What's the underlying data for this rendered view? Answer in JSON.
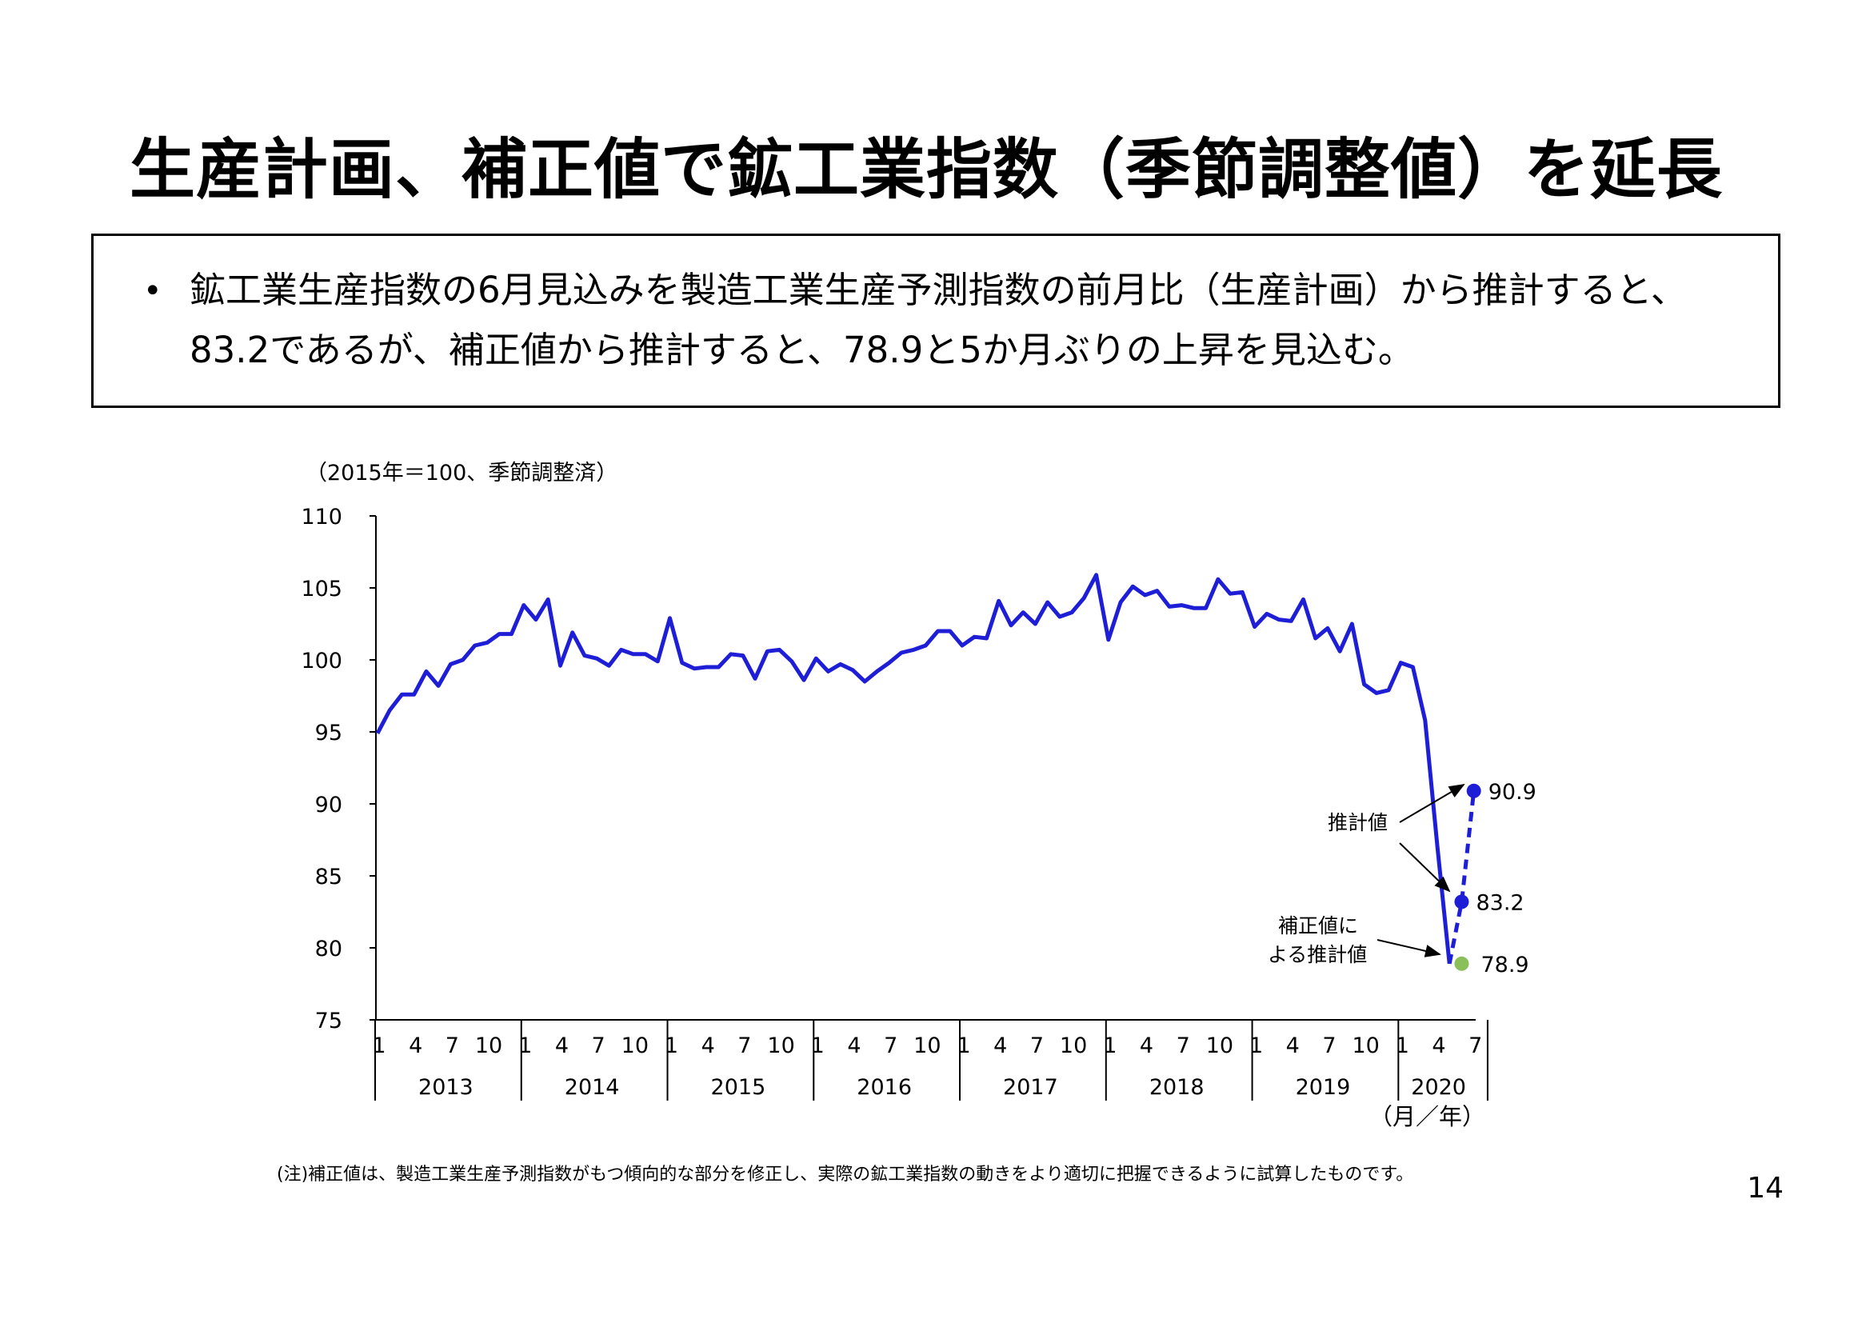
{
  "title": "生産計画、補正値で鉱工業指数（季節調整値）を延長",
  "summary": {
    "bullet": "•",
    "text": "鉱工業生産指数の6月見込みを製造工業生産予測指数の前月比（生産計画）から推計すると、83.2であるが、補正値から推計すると、78.9と5か月ぶりの上昇を見込む。"
  },
  "footnote": "(注)補正値は、製造工業生産予測指数がもつ傾向的な部分を修正し、実際の鉱工業指数の動きをより適切に把握できるように試算したものです。",
  "page_number": "14",
  "colors": {
    "line": "#1e1ed6",
    "estimate_marker": "#1e1ed6",
    "corrected_marker": "#8bbf5a",
    "axis": "#000000"
  },
  "chart_data": {
    "type": "line",
    "unit_label": "（2015年＝100、季節調整済）",
    "x_axis_label": "（月／年）",
    "ylim": [
      75,
      110
    ],
    "yticks": [
      110,
      105,
      100,
      95,
      90,
      85,
      80,
      75
    ],
    "years": [
      "2013",
      "2014",
      "2015",
      "2016",
      "2017",
      "2018",
      "2019",
      "2020"
    ],
    "month_ticks": [
      "1",
      "4",
      "7",
      "10"
    ],
    "month_ticks_2020": [
      "1",
      "4",
      "7"
    ],
    "grid": false,
    "series": [
      {
        "start": "2013-01",
        "values": [
          94.9,
          96.5,
          97.6,
          97.6,
          99.2,
          98.2,
          99.7,
          100.0,
          101.0,
          101.2,
          101.8,
          101.8,
          103.8,
          102.8,
          104.2,
          99.6,
          101.9,
          100.3,
          100.1,
          99.6,
          100.7,
          100.4,
          100.4,
          99.9,
          102.9,
          99.8,
          99.4,
          99.5,
          99.5,
          100.4,
          100.3,
          98.7,
          100.6,
          100.7,
          99.9,
          98.6,
          100.1,
          99.2,
          99.7,
          99.3,
          98.5,
          99.2,
          99.8,
          100.5,
          100.7,
          101.0,
          102.0,
          102.0,
          101.0,
          101.6,
          101.5,
          104.1,
          102.4,
          103.3,
          102.5,
          104.0,
          103.0,
          103.3,
          104.3,
          105.9,
          101.4,
          104.0,
          105.1,
          104.5,
          104.8,
          103.7,
          103.8,
          103.6,
          103.6,
          105.6,
          104.6,
          104.7,
          102.3,
          103.2,
          102.8,
          102.7,
          104.2,
          101.5,
          102.2,
          100.6,
          102.5,
          98.3,
          97.7,
          97.9,
          99.8,
          99.5,
          95.8,
          87.1,
          78.9
        ]
      },
      {
        "name": "推計値",
        "x": [
          "2020-05",
          "2020-06",
          "2020-07"
        ],
        "values": [
          78.9,
          83.2,
          90.9
        ],
        "labels": [
          "",
          "83.2",
          "90.9"
        ]
      },
      {
        "name": "補正値による推計値",
        "x": [
          "2020-06"
        ],
        "values": [
          78.9
        ],
        "labels": [
          "78.9"
        ]
      }
    ],
    "annotations": {
      "estimate": "推計値",
      "corrected_line1": "補正値に",
      "corrected_line2": "よる推計値"
    }
  }
}
